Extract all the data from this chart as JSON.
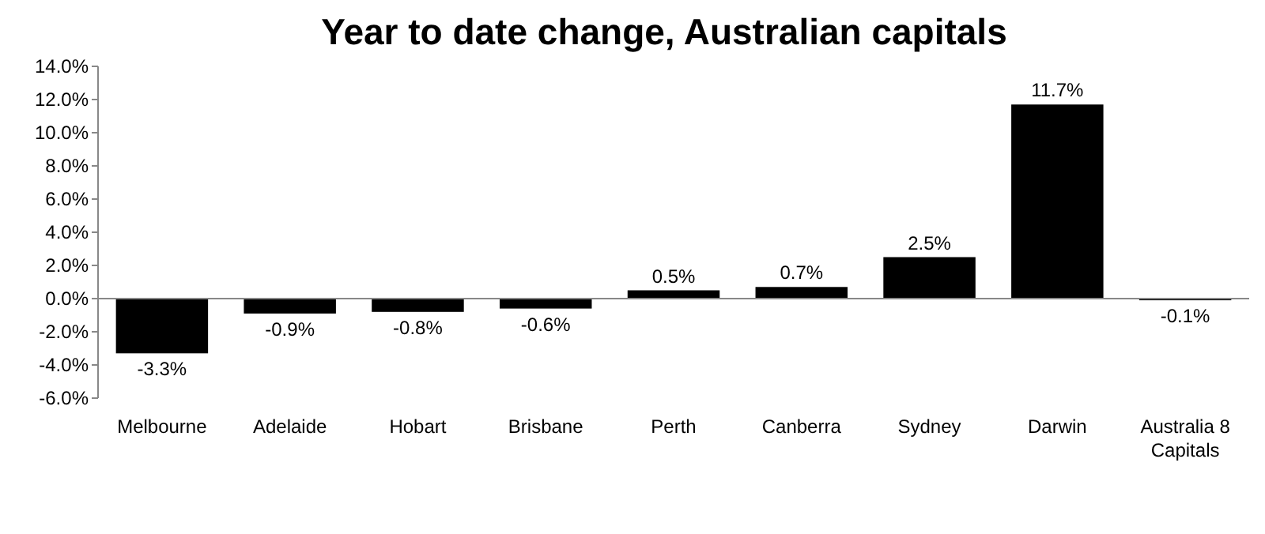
{
  "chart_data": {
    "type": "bar",
    "title": "Year to date change, Australian capitals",
    "categories": [
      "Melbourne",
      "Adelaide",
      "Hobart",
      "Brisbane",
      "Perth",
      "Canberra",
      "Sydney",
      "Darwin",
      "Australia 8 Capitals"
    ],
    "values": [
      -3.3,
      -0.9,
      -0.8,
      -0.6,
      0.5,
      0.7,
      2.5,
      11.7,
      -0.1
    ],
    "value_labels": [
      "-3.3%",
      "-0.9%",
      "-0.8%",
      "-0.6%",
      "0.5%",
      "0.7%",
      "2.5%",
      "11.7%",
      "-0.1%"
    ],
    "color": "#000000",
    "ylim": [
      -6,
      14
    ],
    "yticks": [
      {
        "value": -6,
        "label": "-6.0%"
      },
      {
        "value": -4,
        "label": "-4.0%"
      },
      {
        "value": -2,
        "label": "-2.0%"
      },
      {
        "value": 0,
        "label": "0.0%"
      },
      {
        "value": 2,
        "label": "2.0%"
      },
      {
        "value": 4,
        "label": "4.0%"
      },
      {
        "value": 6,
        "label": "6.0%"
      },
      {
        "value": 8,
        "label": "8.0%"
      },
      {
        "value": 10,
        "label": "10.0%"
      },
      {
        "value": 12,
        "label": "12.0%"
      },
      {
        "value": 14,
        "label": "14.0%"
      }
    ]
  }
}
